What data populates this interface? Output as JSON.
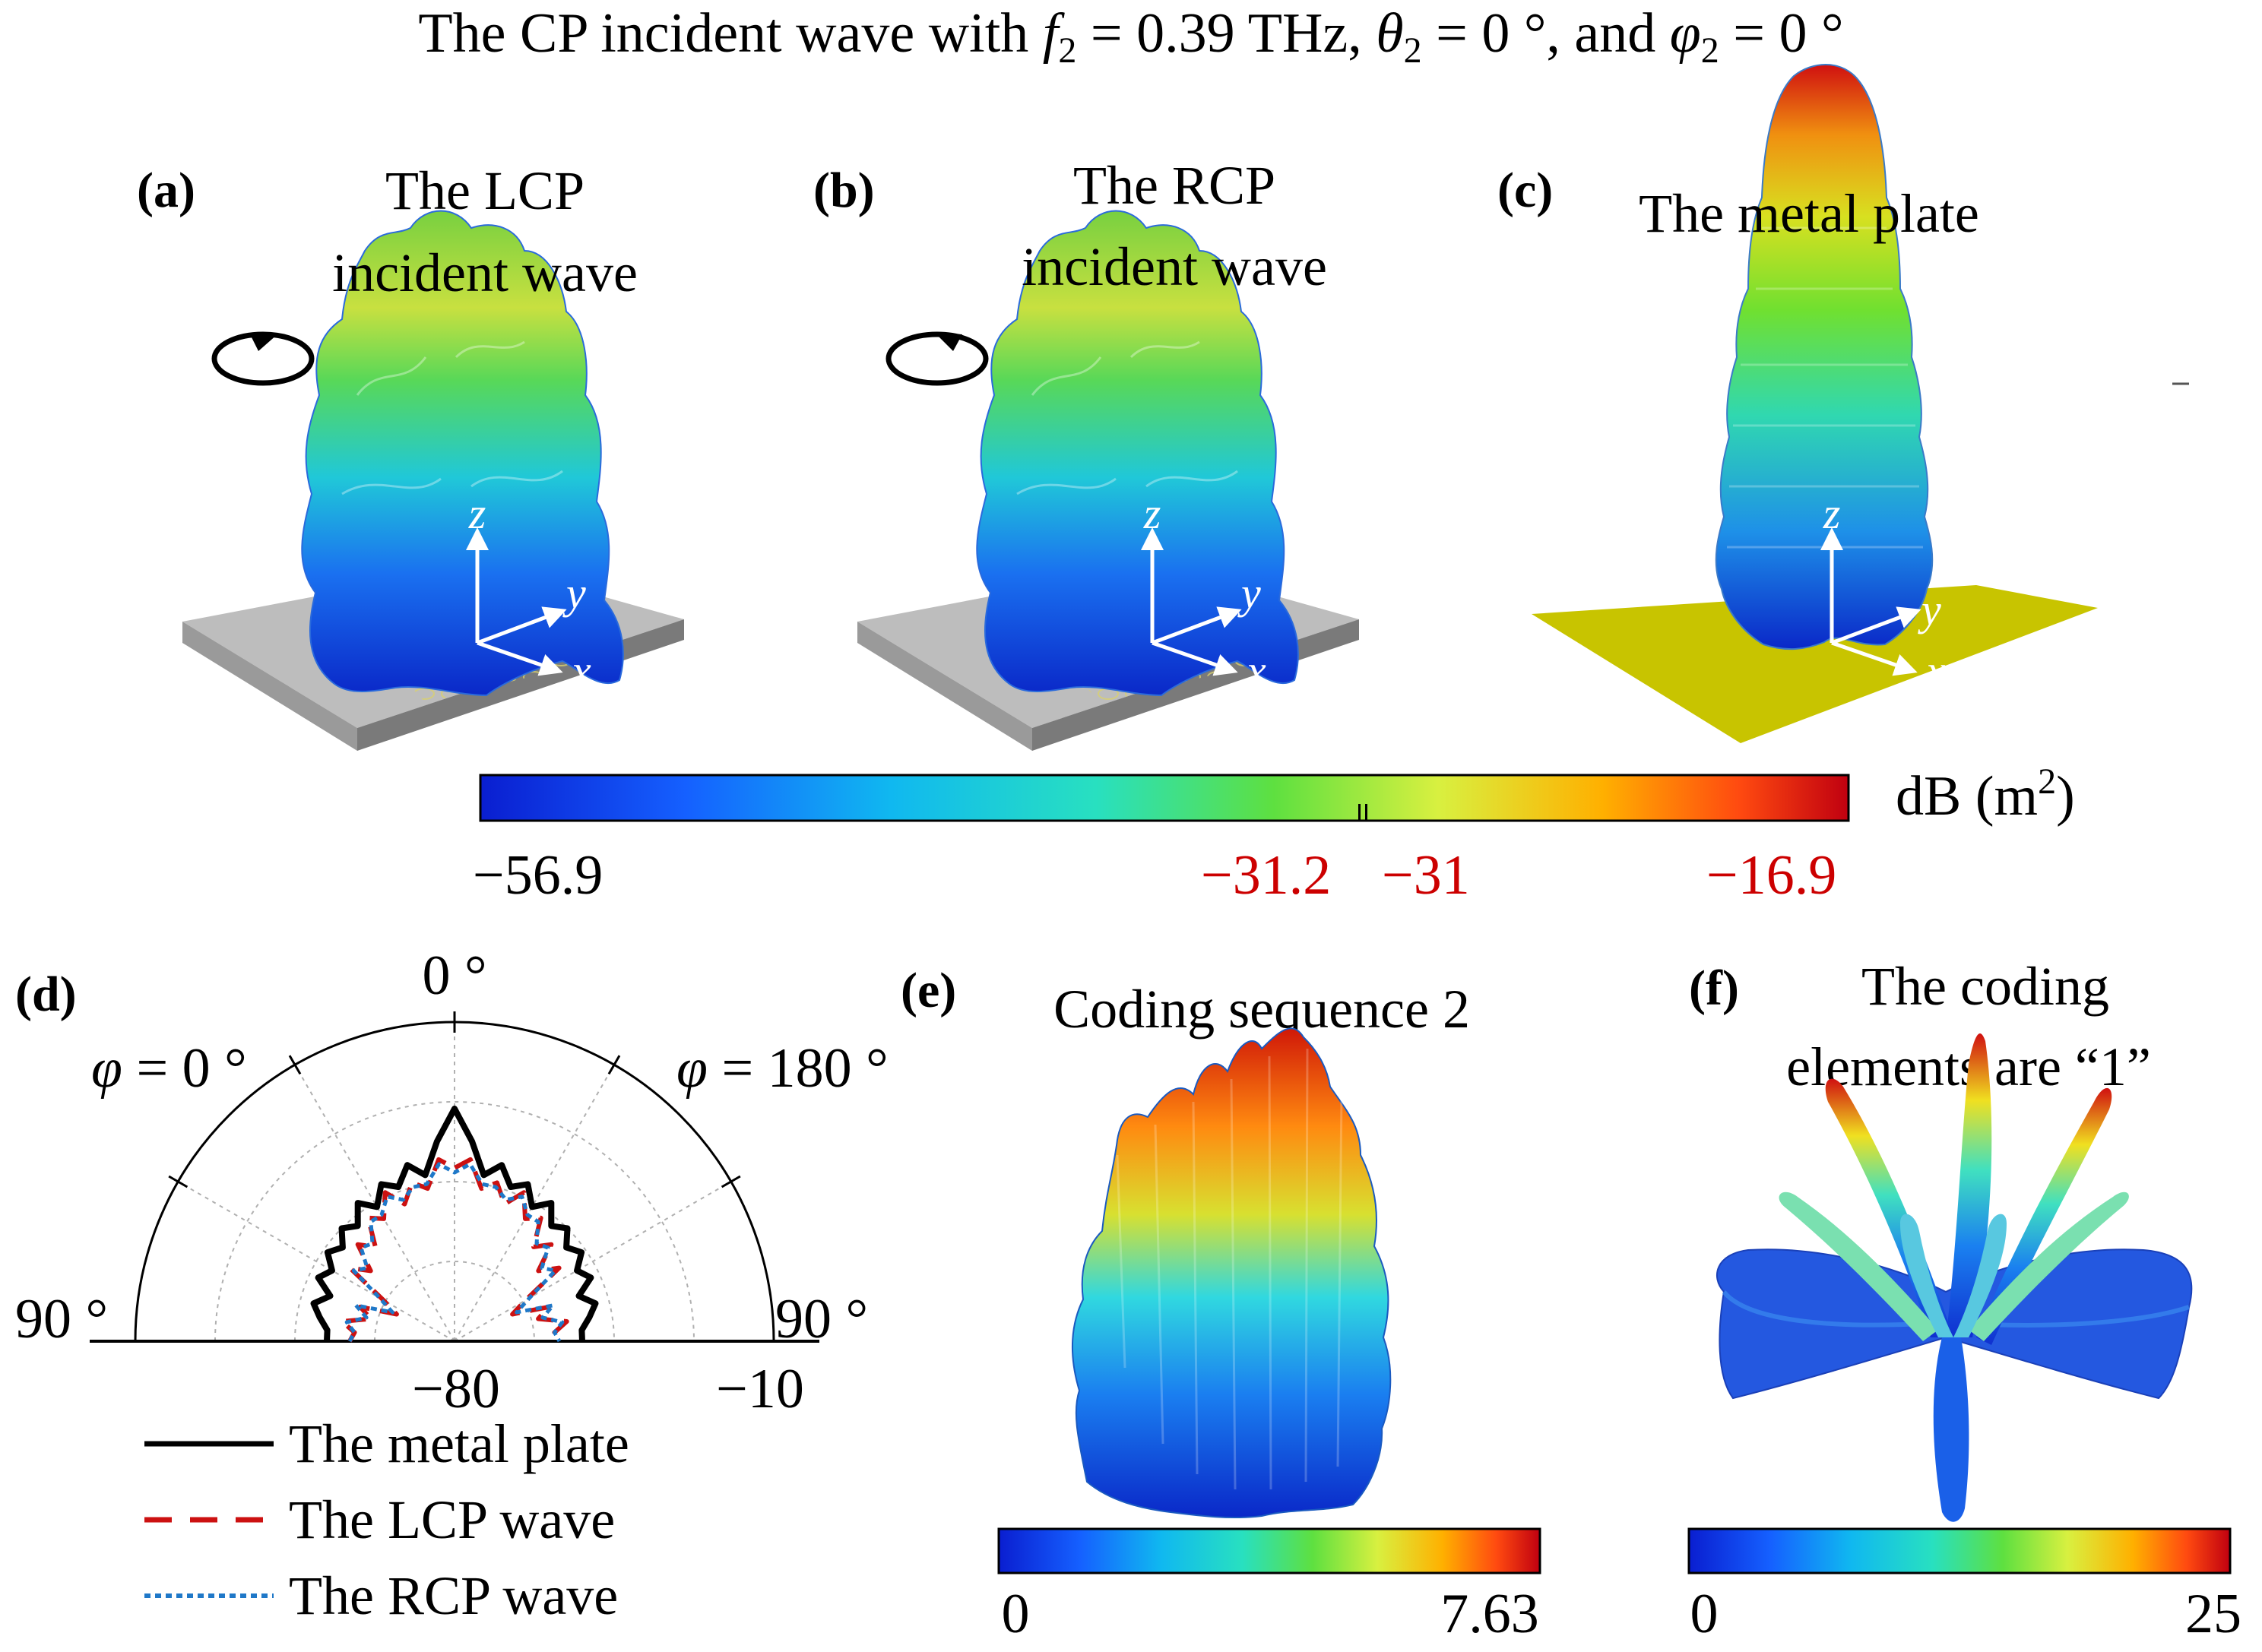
{
  "title": {
    "prefix": "The CP incident wave with ",
    "f_sym": "f",
    "f_sub": "2",
    "f_val": " = 0.39 THz, ",
    "theta_sym": "θ",
    "theta_sub": "2",
    "theta_val": " = 0 °, and ",
    "phi_sym": "φ",
    "phi_sub": "2",
    "phi_val": " = 0 °"
  },
  "panels": {
    "a": {
      "tag": "(a)",
      "line1": "The LCP",
      "line2": "incident wave"
    },
    "b": {
      "tag": "(b)",
      "line1": "The RCP",
      "line2": "incident wave"
    },
    "c": {
      "tag": "(c)",
      "line1": "The metal plate"
    },
    "d": {
      "tag": "(d)"
    },
    "e": {
      "tag": "(e)",
      "line1": "Coding sequence 2"
    },
    "f": {
      "tag": "(f)",
      "line1": "The coding",
      "line2": "elements  are “1”"
    }
  },
  "axes_labels": {
    "z": "z",
    "y": "y",
    "x": "x"
  },
  "main_colorbar": {
    "unit": "dB (m",
    "unit_sup": "2",
    "unit_close": ")",
    "min_label": "−56.9",
    "mid1_label": "−31.2",
    "mid2_label": "−31",
    "max_label": "−16.9",
    "min": -56.9,
    "max": -16.9,
    "mid1": -31.2,
    "mid2": -31,
    "label_color": "#cc0000"
  },
  "colorbar_e": {
    "min_label": "0",
    "max_label": "7.63",
    "min": 0,
    "max": 7.63
  },
  "colorbar_f": {
    "min_label": "0",
    "max_label": "25",
    "min": 0,
    "max": 25
  },
  "chart_data": {
    "type": "polar",
    "title": "",
    "angle_labels": {
      "top": "0 °",
      "left": "90 °",
      "right": "90 °"
    },
    "side_labels": {
      "left_sym": "φ",
      "left_val": " = 0 °",
      "right_sym": "φ",
      "right_val": " = 180 °"
    },
    "radial_range": [
      -80,
      -10
    ],
    "radial_tick_labels": [
      "−80",
      "−10"
    ],
    "series": [
      {
        "name": "The metal plate",
        "style": "solid",
        "color": "#000000",
        "theta": [
          -90,
          -85,
          -80,
          -75,
          -70,
          -65,
          -60,
          -55,
          -50,
          -45,
          -40,
          -35,
          -30,
          -25,
          -20,
          -15,
          -10,
          -5,
          0,
          5,
          10,
          15,
          20,
          25,
          30,
          35,
          40,
          45,
          50,
          55,
          60,
          65,
          70,
          75,
          80,
          85,
          90
        ],
        "values": [
          -52,
          -52,
          -50,
          -48,
          -51,
          -47,
          -49,
          -46,
          -48,
          -45,
          -47,
          -43,
          -46,
          -42,
          -44,
          -40,
          -43,
          -36,
          -29,
          -36,
          -43,
          -40,
          -44,
          -42,
          -46,
          -43,
          -47,
          -45,
          -48,
          -46,
          -49,
          -47,
          -51,
          -48,
          -50,
          -52,
          -52
        ]
      },
      {
        "name": "The LCP wave",
        "style": "dashed",
        "color": "#cc1111",
        "theta": [
          -90,
          -85,
          -80,
          -75,
          -70,
          -65,
          -60,
          -55,
          -50,
          -45,
          -40,
          -35,
          -30,
          -25,
          -20,
          -15,
          -10,
          -5,
          0,
          5,
          10,
          15,
          20,
          25,
          30,
          35,
          40,
          45,
          50,
          55,
          60,
          65,
          70,
          75,
          80,
          85,
          90
        ],
        "values": [
          -57,
          -58,
          -55,
          -61,
          -58,
          -66,
          -62,
          -52,
          -56,
          -50,
          -53,
          -47,
          -49,
          -44,
          -48,
          -44,
          -46,
          -40,
          -42,
          -40,
          -46,
          -44,
          -48,
          -44,
          -49,
          -47,
          -53,
          -50,
          -56,
          -52,
          -62,
          -66,
          -58,
          -61,
          -55,
          -58,
          -57
        ]
      },
      {
        "name": "The RCP wave",
        "style": "dotted",
        "color": "#1f78c8",
        "theta": [
          -90,
          -85,
          -80,
          -75,
          -70,
          -65,
          -60,
          -55,
          -50,
          -45,
          -40,
          -35,
          -30,
          -25,
          -20,
          -15,
          -10,
          -5,
          0,
          5,
          10,
          15,
          20,
          25,
          30,
          35,
          40,
          45,
          50,
          55,
          60,
          65,
          70,
          75,
          80,
          85,
          90
        ],
        "values": [
          -57,
          -58,
          -56,
          -60,
          -57,
          -65,
          -61,
          -53,
          -55,
          -51,
          -52,
          -48,
          -48,
          -45,
          -47,
          -45,
          -45,
          -41,
          -43,
          -41,
          -45,
          -45,
          -47,
          -45,
          -48,
          -48,
          -52,
          -51,
          -55,
          -53,
          -61,
          -65,
          -57,
          -60,
          -56,
          -58,
          -57
        ]
      }
    ],
    "legend": [
      "The metal plate",
      "The LCP wave",
      "The RCP wave"
    ],
    "legend_position": "bottom-left"
  }
}
